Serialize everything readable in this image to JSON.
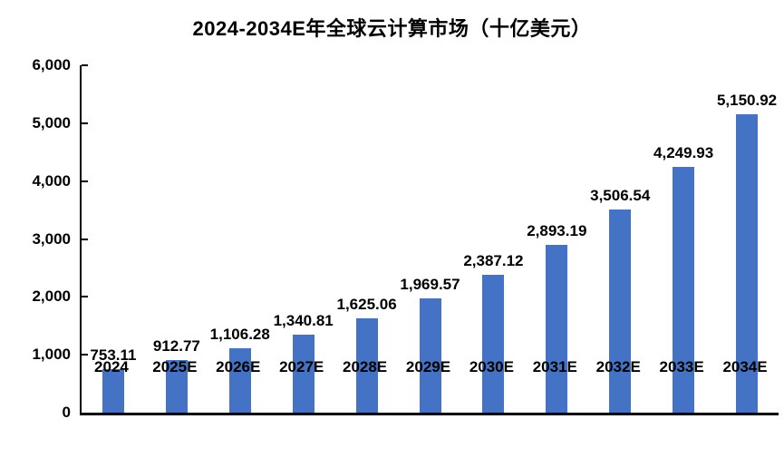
{
  "chart_data": {
    "type": "bar",
    "title": "2024-2034E年全球云计算市场（十亿美元）",
    "categories": [
      "2024",
      "2025E",
      "2026E",
      "2027E",
      "2028E",
      "2029E",
      "2030E",
      "2031E",
      "2032E",
      "2033E",
      "2034E"
    ],
    "values": [
      753.11,
      912.77,
      1106.28,
      1340.81,
      1625.06,
      1969.57,
      2387.12,
      2893.19,
      3506.54,
      4249.93,
      5150.92
    ],
    "value_labels": [
      "753.11",
      "912.77",
      "1,106.28",
      "1,340.81",
      "1,625.06",
      "1,969.57",
      "2,387.12",
      "2,893.19",
      "3,506.54",
      "4,249.93",
      "5,150.92"
    ],
    "xlabel": "",
    "ylabel": "",
    "ylim": [
      0,
      6000
    ],
    "y_tick_values": [
      0,
      1000,
      2000,
      3000,
      4000,
      5000,
      6000
    ],
    "y_tick_labels": [
      "0",
      "1,000",
      "2,000",
      "3,000",
      "4,000",
      "5,000",
      "6,000"
    ],
    "grid": false,
    "legend_position": "none",
    "data_label_position": "outside-end",
    "bar_color": "#4472C4",
    "axis_color": "#000000",
    "text_color": "#000000"
  }
}
